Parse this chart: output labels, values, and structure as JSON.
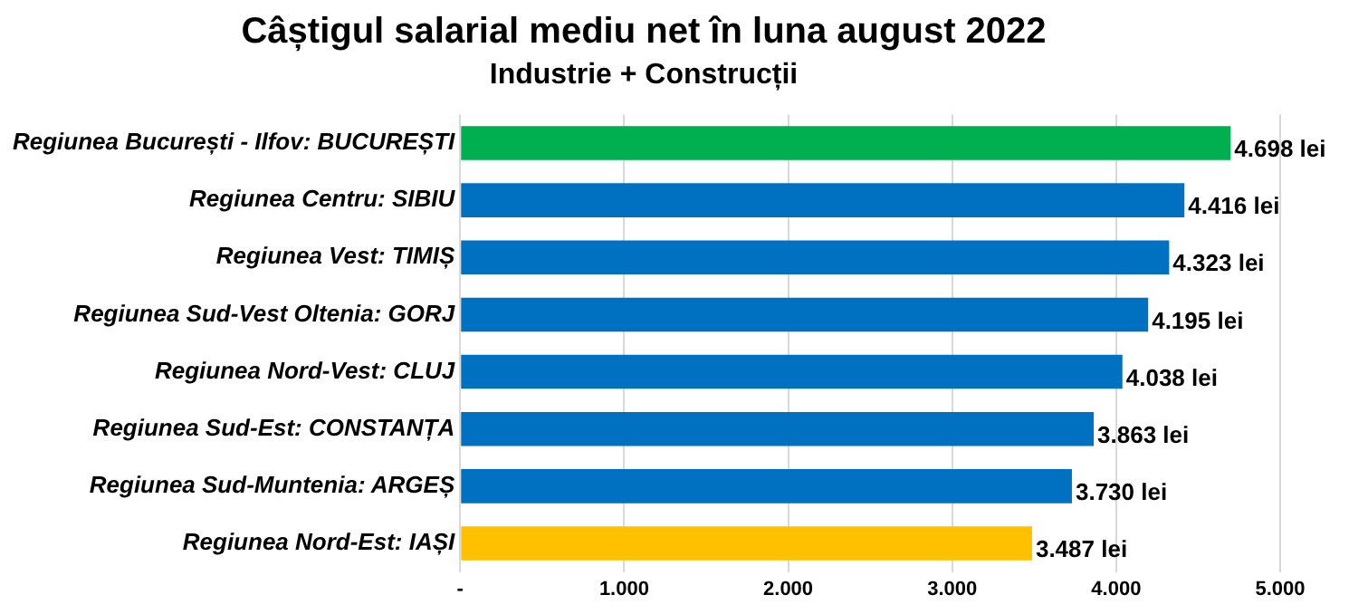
{
  "chart_data": {
    "type": "bar",
    "orientation": "horizontal",
    "title": "Câștigul salarial mediu net în luna august 2022",
    "subtitle": "Industrie + Construcții",
    "categories": [
      "Regiunea București - Ilfov: BUCUREȘTI",
      "Regiunea Centru: SIBIU",
      "Regiunea Vest: TIMIȘ",
      "Regiunea Sud-Vest Oltenia: GORJ",
      "Regiunea Nord-Vest: CLUJ",
      "Regiunea Sud-Est: CONSTANȚA",
      "Regiunea Sud-Muntenia: ARGEȘ",
      "Regiunea Nord-Est: IAȘI"
    ],
    "values": [
      4698,
      4416,
      4323,
      4195,
      4038,
      3863,
      3730,
      3487
    ],
    "colors": [
      "#00b050",
      "#0070c0",
      "#0070c0",
      "#0070c0",
      "#0070c0",
      "#0070c0",
      "#0070c0",
      "#ffc000"
    ],
    "value_labels": [
      "4.698 lei",
      "4.416 lei",
      "4.323 lei",
      "4.195 lei",
      "4.038 lei",
      "3.863 lei",
      "3.730 lei",
      "3.487 lei"
    ],
    "xlim": [
      0,
      5000
    ],
    "xticks": [
      {
        "value": 0,
        "label": "-"
      },
      {
        "value": 1000,
        "label": "1.000"
      },
      {
        "value": 2000,
        "label": "2.000"
      },
      {
        "value": 3000,
        "label": "3.000"
      },
      {
        "value": 4000,
        "label": "4.000"
      },
      {
        "value": 5000,
        "label": "5.000"
      }
    ],
    "grid": "x",
    "legend": false
  }
}
